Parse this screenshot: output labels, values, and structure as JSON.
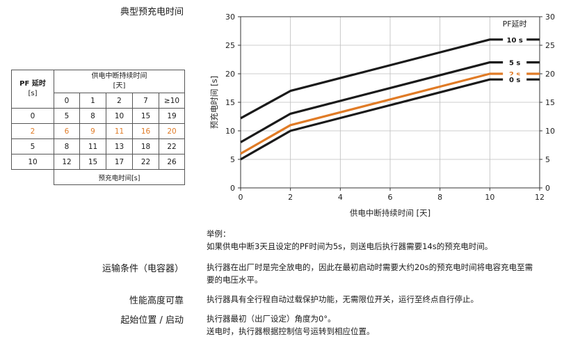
{
  "heading": "典型预充电时间",
  "table": {
    "corner": [
      "PF 延时",
      "[s]"
    ],
    "top_header": [
      "供电中断持续时间",
      "[天]"
    ],
    "days": [
      "0",
      "1",
      "2",
      "7",
      "≥10"
    ],
    "rows": [
      {
        "pf": "0",
        "values": [
          "5",
          "8",
          "10",
          "15",
          "19"
        ],
        "highlight": false
      },
      {
        "pf": "2",
        "values": [
          "6",
          "9",
          "11",
          "16",
          "20"
        ],
        "highlight": true
      },
      {
        "pf": "5",
        "values": [
          "8",
          "11",
          "13",
          "18",
          "22"
        ],
        "highlight": false
      },
      {
        "pf": "10",
        "values": [
          "12",
          "15",
          "17",
          "22",
          "26"
        ],
        "highlight": false
      }
    ],
    "footer": "预充电时间[s]"
  },
  "chart_data": {
    "type": "line",
    "xlabel": "供电中断持续时间 [天]",
    "ylabel": "预充电时间 [s]",
    "xlim": [
      0,
      12
    ],
    "ylim": [
      0,
      30
    ],
    "xticks": [
      "0",
      "2",
      "4",
      "6",
      "8",
      "10",
      "12"
    ],
    "yticks": [
      "0",
      "5",
      "10",
      "15",
      "20",
      "25",
      "30"
    ],
    "legend_title": "PF延时",
    "grid": true,
    "series": [
      {
        "name": "10 s",
        "x": [
          0,
          2,
          10,
          12
        ],
        "y": [
          12.2,
          17,
          26,
          26
        ],
        "color": "#1a1a1a"
      },
      {
        "name": "5 s",
        "x": [
          0,
          2,
          10,
          12
        ],
        "y": [
          8,
          13,
          22,
          22
        ],
        "color": "#1a1a1a"
      },
      {
        "name": "2 s",
        "x": [
          0,
          2,
          10,
          12
        ],
        "y": [
          6,
          11,
          20,
          20
        ],
        "color": "#e07b26"
      },
      {
        "name": "0 s",
        "x": [
          0,
          2,
          10,
          12
        ],
        "y": [
          5,
          10,
          19,
          19
        ],
        "color": "#1a1a1a"
      }
    ]
  },
  "example": {
    "title": "举例：",
    "text": "如果供电中断3天且设定的PF时间为5s，则送电后执行器需要14s的预充电时间。"
  },
  "sections": [
    {
      "title": "运输条件（电容器）",
      "lines": [
        "执行器在出厂时是完全放电的，因此在最初启动时需要大约20s的预充电时间将电容充电至需",
        "要的电压水平。"
      ]
    },
    {
      "title": "性能高度可靠",
      "lines": [
        "执行器具有全行程自动过载保护功能，无需限位开关，运行至终点自行停止。"
      ]
    },
    {
      "title": "起始位置 / 启动",
      "lines": [
        "执行器最初（出厂设定）角度为0°。",
        "送电时，执行器根据控制信号运转到相应位置。"
      ]
    }
  ]
}
